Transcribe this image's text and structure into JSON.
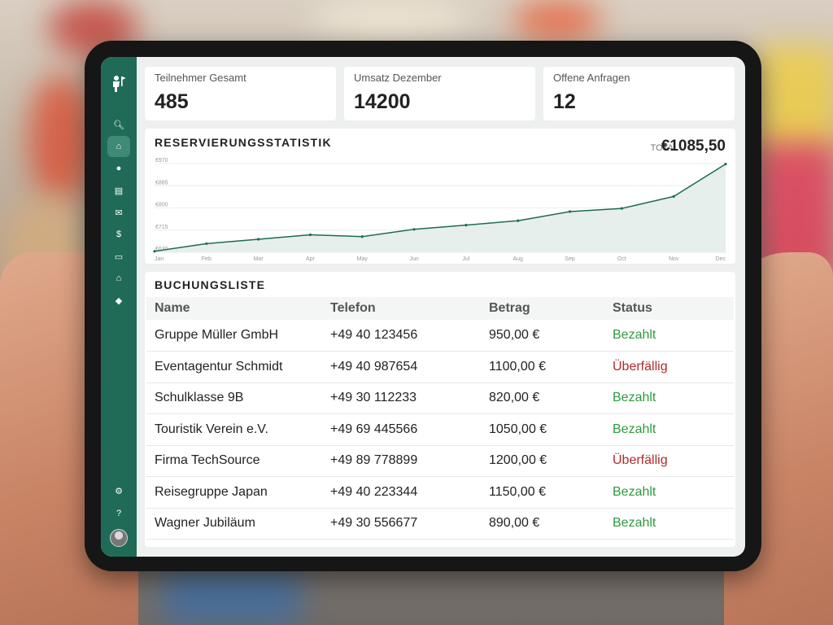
{
  "colors": {
    "sidebar": "#1f6b58",
    "accent": "#1f6b58",
    "paid": "#2f9a3f",
    "overdue": "#b12a2a"
  },
  "sidebar": {
    "logo_icon": "person-flag-icon",
    "items": [
      {
        "icon": "search-icon",
        "glyph": "🔍︎"
      },
      {
        "icon": "home-icon",
        "glyph": "⌂",
        "active": true
      },
      {
        "icon": "user-icon",
        "glyph": "●"
      },
      {
        "icon": "id-card-icon",
        "glyph": "▤"
      },
      {
        "icon": "mail-icon",
        "glyph": "✉"
      },
      {
        "icon": "invoice-icon",
        "glyph": "$"
      },
      {
        "icon": "cash-icon",
        "glyph": "▭"
      },
      {
        "icon": "bank-icon",
        "glyph": "⌂"
      },
      {
        "icon": "tag-icon",
        "glyph": "◆"
      }
    ],
    "bottom": [
      {
        "icon": "gear-icon",
        "glyph": "⚙"
      },
      {
        "icon": "help-icon",
        "glyph": "?"
      }
    ]
  },
  "stats": [
    {
      "label": "Teilnehmer Gesamt",
      "value": "485"
    },
    {
      "label": "Umsatz Dezember",
      "value": "14200"
    },
    {
      "label": "Offene Anfragen",
      "value": "12"
    }
  ],
  "chart": {
    "title": "RESERVIERUNGSSTATISTIK",
    "total_label": "TOTAL",
    "total_value": "€1085,50"
  },
  "chart_data": {
    "type": "area",
    "title": "RESERVIERUNGSSTATISTIK",
    "categories": [
      "Jan",
      "Feb",
      "Mar",
      "Apr",
      "May",
      "Jun",
      "Jul",
      "Aug",
      "Sep",
      "Oct",
      "Nov",
      "Dec"
    ],
    "yticks": [
      "€970",
      "€885",
      "€800",
      "€715",
      "€630"
    ],
    "ytick_values": [
      970,
      885,
      800,
      715,
      630
    ],
    "ylim": [
      630,
      970
    ],
    "values": [
      634,
      663,
      680,
      697,
      690,
      718,
      734,
      751,
      786,
      798,
      844,
      968
    ],
    "grid": true
  },
  "table": {
    "title": "BUCHUNGSLISTE",
    "columns": [
      "Name",
      "Telefon",
      "Betrag",
      "Status"
    ],
    "rows": [
      {
        "name": "Gruppe Müller GmbH",
        "tel": "+49 40 123456",
        "amount": "950,00 €",
        "status": "Bezahlt",
        "paid": true
      },
      {
        "name": "Eventagentur Schmidt",
        "tel": "+49 40 987654",
        "amount": "1100,00 €",
        "status": "Überfällig",
        "paid": false
      },
      {
        "name": "Schulklasse 9B",
        "tel": "+49 30 112233",
        "amount": "820,00 €",
        "status": "Bezahlt",
        "paid": true
      },
      {
        "name": "Touristik Verein e.V.",
        "tel": "+49 69 445566",
        "amount": "1050,00 €",
        "status": "Bezahlt",
        "paid": true
      },
      {
        "name": "Firma TechSource",
        "tel": "+49 89 778899",
        "amount": "1200,00 €",
        "status": "Überfällig",
        "paid": false
      },
      {
        "name": "Reisegruppe Japan",
        "tel": "+49 40 223344",
        "amount": "1150,00 €",
        "status": "Bezahlt",
        "paid": true
      },
      {
        "name": "Wagner Jubiläum",
        "tel": "+49 30 556677",
        "amount": "890,00 €",
        "status": "Bezahlt",
        "paid": true
      }
    ]
  }
}
